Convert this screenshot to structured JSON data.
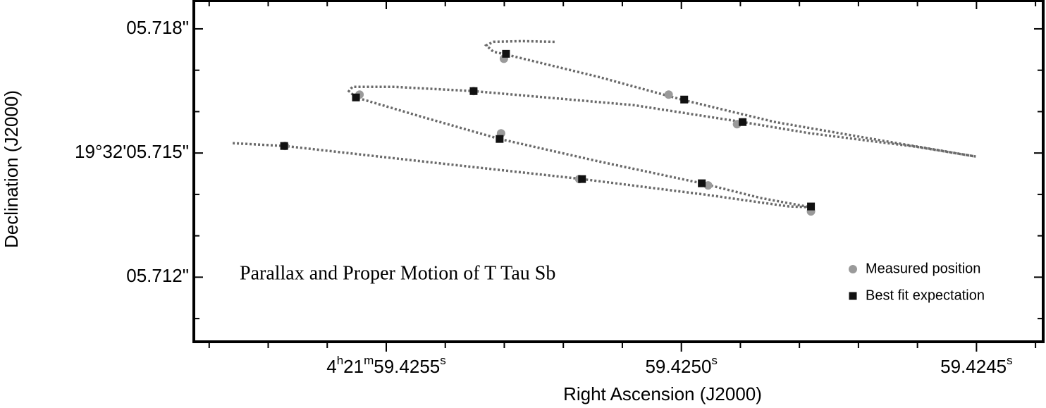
{
  "chart_data": {
    "type": "scatter",
    "xlabel": "Right Ascension (J2000)",
    "ylabel": "Declination (J2000)",
    "annotation": "Parallax and Proper Motion of T Tau Sb",
    "xlim": [
      59.425826,
      59.424387
    ],
    "ylim": [
      5.71044,
      5.71868
    ],
    "xticks": [
      {
        "value": 59.4255,
        "label": "4h21m59.4255s"
      },
      {
        "value": 59.425,
        "label": "59.4250s"
      },
      {
        "value": 59.4245,
        "label": "59.4245s"
      }
    ],
    "xminorticks": [
      59.4258,
      59.4257,
      59.4256,
      59.4254,
      59.4253,
      59.4252,
      59.4251,
      59.4249,
      59.4248,
      59.4247,
      59.4246,
      59.4244
    ],
    "yticks": [
      {
        "value": 5.718,
        "label": "05.718\""
      },
      {
        "value": 5.715,
        "label": "19°32'05.715\""
      },
      {
        "value": 5.712,
        "label": "05.712\""
      }
    ],
    "yminorticks": [
      5.717,
      5.716,
      5.714,
      5.713,
      5.711
    ],
    "legend": "lower right",
    "series": [
      {
        "marker": "dotted-line",
        "color": "#6a6a6a",
        "x": [
          59.4252148,
          59.4252709,
          59.4253186,
          59.4253306,
          59.4253186,
          59.4252971,
          59.4251396,
          59.4249952,
          59.4248413,
          59.4246623,
          59.4245012,
          59.4246026,
          59.4247816,
          59.4248962,
          59.42508,
          59.425352,
          59.4254857,
          59.4255573,
          59.4255632,
          59.4255513,
          59.4254379,
          59.4253079,
          59.4251396,
          59.4249654,
          59.4248652,
          59.4247816,
          59.4248174,
          59.4249606,
          59.4251683,
          59.4254379,
          59.4256718,
          59.4257601
        ],
        "y": [
          5.717686,
          5.717703,
          5.717686,
          5.717601,
          5.717448,
          5.71738,
          5.716836,
          5.716275,
          5.715748,
          5.715306,
          5.714915,
          5.715153,
          5.715476,
          5.715748,
          5.716156,
          5.716496,
          5.716598,
          5.716598,
          5.716496,
          5.716343,
          5.715867,
          5.71534,
          5.714796,
          5.714269,
          5.713912,
          5.713691,
          5.713708,
          5.713997,
          5.714371,
          5.714796,
          5.71517,
          5.715238
        ]
      },
      {
        "name": "Measured position",
        "marker": "circle",
        "color": "#9a9a9a",
        "x": [
          59.4256718,
          59.4255453,
          59.425352,
          59.4253055,
          59.4253007,
          59.425173,
          59.4250215,
          59.4249547,
          59.4249057,
          59.4247804
        ],
        "y": [
          5.71517,
          5.716411,
          5.716496,
          5.715476,
          5.717278,
          5.714371,
          5.716411,
          5.714218,
          5.715697,
          5.713589
        ]
      },
      {
        "name": "Best fit expectation",
        "marker": "square",
        "color": "#111111",
        "x": [
          59.425673,
          59.4255513,
          59.425352,
          59.4253079,
          59.4252971,
          59.4251683,
          59.4249952,
          59.4249654,
          59.4248962,
          59.4247804
        ],
        "y": [
          5.71517,
          5.716343,
          5.716496,
          5.71534,
          5.717397,
          5.714371,
          5.716292,
          5.714269,
          5.715748,
          5.713708
        ]
      }
    ]
  }
}
